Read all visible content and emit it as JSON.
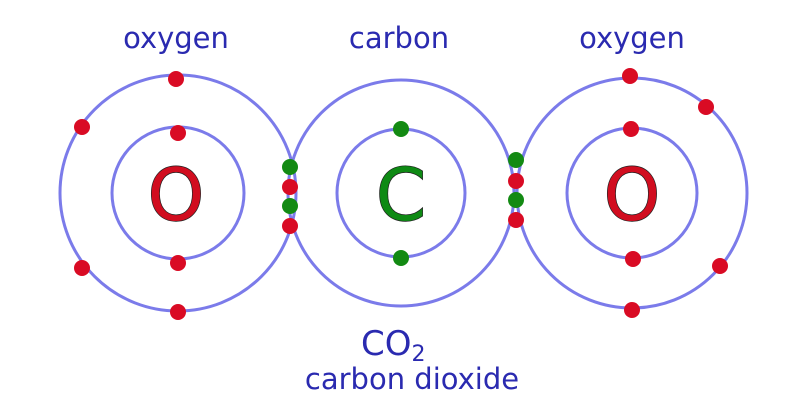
{
  "labels": {
    "left_atom": "oxygen",
    "center_atom": "carbon",
    "right_atom": "oxygen"
  },
  "symbols": {
    "left": "O",
    "center": "C",
    "right": "O"
  },
  "formula": {
    "main": "CO",
    "subscript": "2"
  },
  "compound_name": "carbon dioxide",
  "colors": {
    "shell": "#7b7bea",
    "label": "#2a2ab0",
    "oxygen": "#d10d1f",
    "carbon": "#0e8a14",
    "oxygen_electron": "#d90b24",
    "carbon_electron": "#138a13"
  }
}
